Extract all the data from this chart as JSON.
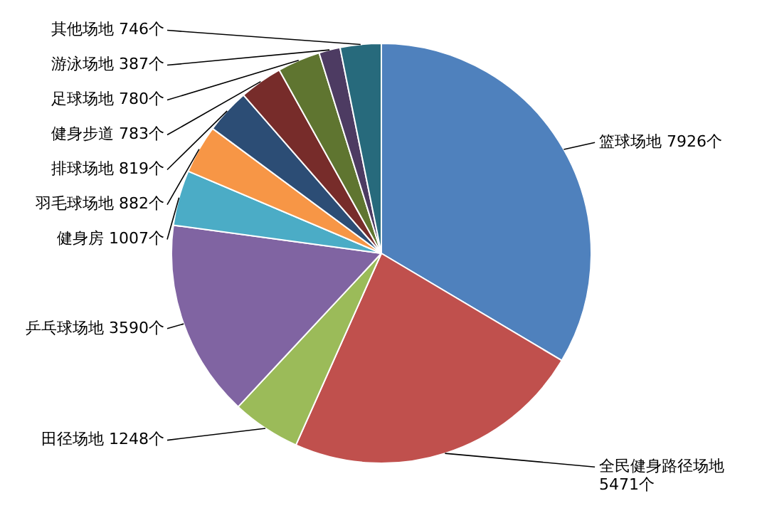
{
  "chart_data": {
    "type": "pie",
    "categories": [
      "篮球场地",
      "全民健身路径场地",
      "田径场地",
      "乒乓球场地",
      "健身房",
      "羽毛球场地",
      "排球场地",
      "健身步道",
      "足球场地",
      "游泳场地",
      "其他场地"
    ],
    "values": [
      7926,
      5471,
      1248,
      3590,
      1007,
      882,
      819,
      783,
      780,
      387,
      746
    ],
    "value_labels": [
      "7926个",
      "5471个",
      "1248个",
      "3590个",
      "1007个",
      "882个",
      "819个",
      "783个",
      "780个",
      "387个",
      "746个"
    ],
    "colors": [
      "#4f81bd",
      "#c0504d",
      "#9bbb59",
      "#8064a2",
      "#4bacc6",
      "#f79646",
      "#2c4d75",
      "#772c2a",
      "#5f7530",
      "#4d3b62",
      "#276a7c"
    ],
    "legend": false
  }
}
